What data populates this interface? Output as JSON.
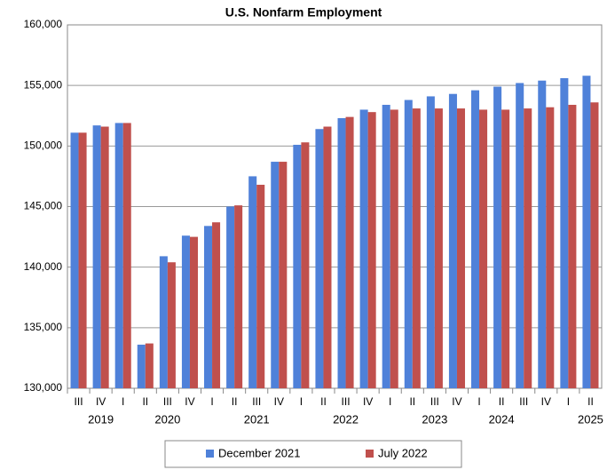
{
  "chart_data": {
    "type": "bar",
    "title": "U.S. Nonfarm Employment",
    "categories": [
      "III",
      "IV",
      "I",
      "II",
      "III",
      "IV",
      "I",
      "II",
      "III",
      "IV",
      "I",
      "II",
      "III",
      "IV",
      "I",
      "II",
      "III",
      "IV",
      "I",
      "II",
      "III",
      "IV",
      "I",
      "II"
    ],
    "year_labels": [
      null,
      "2019",
      null,
      null,
      "2020",
      null,
      null,
      null,
      "2021",
      null,
      null,
      null,
      "2022",
      null,
      null,
      null,
      "2023",
      null,
      null,
      "2024",
      null,
      null,
      null,
      "2025"
    ],
    "series": [
      {
        "name": "December 2021",
        "color": "#4f81d9",
        "values": [
          151100,
          151700,
          151900,
          133600,
          140900,
          142600,
          143400,
          145000,
          147500,
          148700,
          150100,
          151400,
          152300,
          153000,
          153400,
          153800,
          154100,
          154300,
          154600,
          154900,
          155200,
          155400,
          155600,
          155800
        ]
      },
      {
        "name": "July 2022",
        "color": "#c0504d",
        "values": [
          151100,
          151600,
          151900,
          133700,
          140400,
          142500,
          143700,
          145100,
          146800,
          148700,
          150300,
          151600,
          152400,
          152800,
          153000,
          153100,
          153100,
          153100,
          153000,
          153000,
          153100,
          153200,
          153400,
          153600
        ]
      }
    ],
    "ylim": [
      130000,
      160000
    ],
    "yticks": [
      {
        "value": 130000,
        "label": "130,000"
      },
      {
        "value": 135000,
        "label": "135,000"
      },
      {
        "value": 140000,
        "label": "140,000"
      },
      {
        "value": 145000,
        "label": "145,000"
      },
      {
        "value": 150000,
        "label": "150,000"
      },
      {
        "value": 155000,
        "label": "155,000"
      },
      {
        "value": 160000,
        "label": "160,000"
      }
    ],
    "grid": true
  }
}
